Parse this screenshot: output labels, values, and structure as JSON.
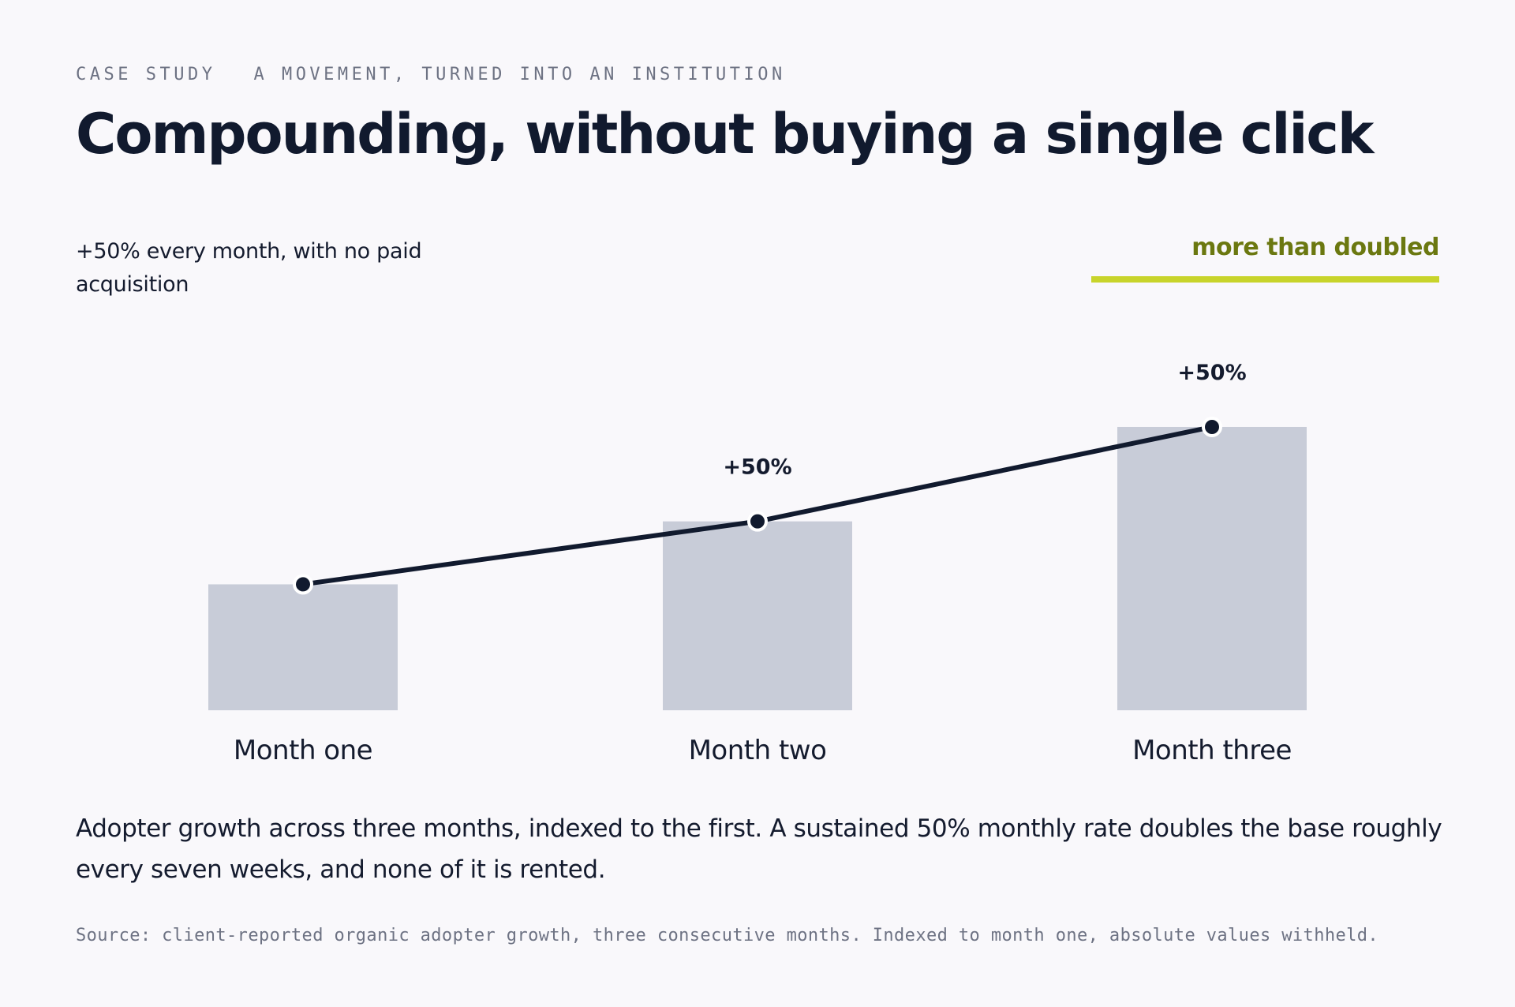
{
  "header": {
    "eyebrow_left": "CASE STUDY",
    "eyebrow_right": "A MOVEMENT, TURNED INTO AN INSTITUTION",
    "title": "Compounding, without buying a single click"
  },
  "subtitle": "+50% every month, with no paid acquisition",
  "callout": {
    "label": "more than doubled",
    "color": "#6b7810",
    "bar_color": "#c8d42b"
  },
  "caption": "Adopter growth across three months, indexed to the first. A sustained 50% monthly rate doubles the base roughly every seven weeks, and none of it is rented.",
  "source": "Source: client-reported organic adopter growth, three consecutive months. Indexed to month one, absolute values withheld.",
  "chart_data": {
    "type": "bar",
    "title": "",
    "xlabel": "",
    "ylabel": "",
    "categories": [
      "Month one",
      "Month two",
      "Month three"
    ],
    "values": [
      100,
      150,
      225
    ],
    "line_overlay": true,
    "data_labels": [
      "",
      "+50%",
      "+50%"
    ],
    "ylim": [
      0,
      230
    ],
    "grid": false,
    "legend": "none",
    "colors": {
      "bar": "#c8ccd8",
      "line": "#111a2e",
      "marker": "#111a2e",
      "marker_ring": "#ffffff"
    }
  }
}
